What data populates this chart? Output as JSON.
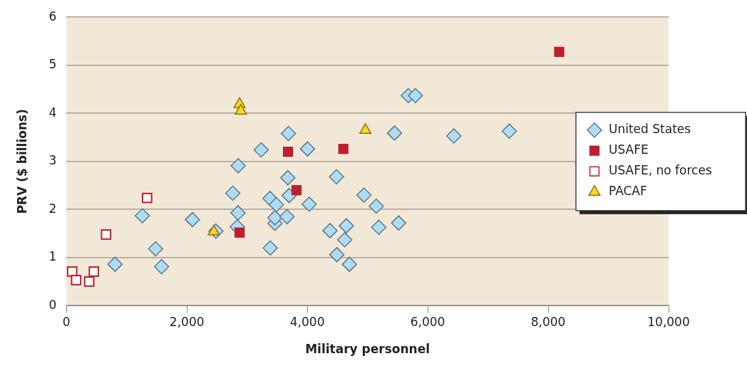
{
  "chart_data": {
    "type": "scatter",
    "xlabel": "Military personnel",
    "ylabel": "PRV ($ billions)",
    "xlim": [
      0,
      10000
    ],
    "xticks": [
      {
        "value": 0,
        "label": "0"
      },
      {
        "value": 2000,
        "label": "2,000"
      },
      {
        "value": 4000,
        "label": "4,000"
      },
      {
        "value": 6000,
        "label": "6,000"
      },
      {
        "value": 8000,
        "label": "8,000"
      },
      {
        "value": 10000,
        "label": "10,000"
      }
    ],
    "ylim": [
      0,
      6
    ],
    "yticks": [
      0,
      1,
      2,
      3,
      4,
      5,
      6
    ],
    "grid": "y",
    "legend": "right",
    "series": [
      {
        "name": "United States",
        "marker": "diamond",
        "color": "#aedcf5",
        "x": [
          807,
          1261,
          1481,
          1580,
          2092,
          2482,
          2762,
          2852,
          2849,
          2837,
          3235,
          3380,
          3384,
          3463,
          3463,
          3486,
          3663,
          3676,
          3687,
          3699,
          4003,
          4031,
          4484,
          4941,
          5145,
          5449,
          5516,
          5187,
          4649,
          4621,
          4377,
          4491,
          4700,
          5677,
          5795,
          6434,
          7355
        ],
        "values": [
          0.86,
          1.87,
          1.18,
          0.81,
          1.79,
          1.55,
          2.34,
          2.91,
          1.93,
          1.64,
          3.24,
          2.23,
          1.2,
          1.71,
          1.83,
          2.1,
          1.85,
          2.66,
          3.58,
          2.29,
          3.26,
          2.11,
          2.68,
          2.3,
          2.07,
          3.59,
          1.72,
          1.63,
          1.66,
          1.37,
          1.56,
          1.06,
          0.86,
          4.37,
          4.37,
          3.53,
          3.63
        ]
      },
      {
        "name": "USAFE",
        "marker": "square",
        "color": "#be1e2d",
        "x": [
          3680,
          4598,
          3821,
          2876,
          8183
        ],
        "values": [
          3.2,
          3.26,
          2.4,
          1.52,
          5.28
        ]
      },
      {
        "name": "USAFE, no forces",
        "marker": "square-open",
        "color": "#be1e2d",
        "x": [
          1339,
          658,
          95,
          161,
          378,
          456
        ],
        "values": [
          2.24,
          1.48,
          0.71,
          0.53,
          0.5,
          0.71
        ]
      },
      {
        "name": "PACAF",
        "marker": "triangle",
        "color": "#ffd520",
        "x": [
          2876,
          2896,
          2447,
          4964
        ],
        "values": [
          4.19,
          4.05,
          1.54,
          3.65
        ]
      }
    ]
  }
}
